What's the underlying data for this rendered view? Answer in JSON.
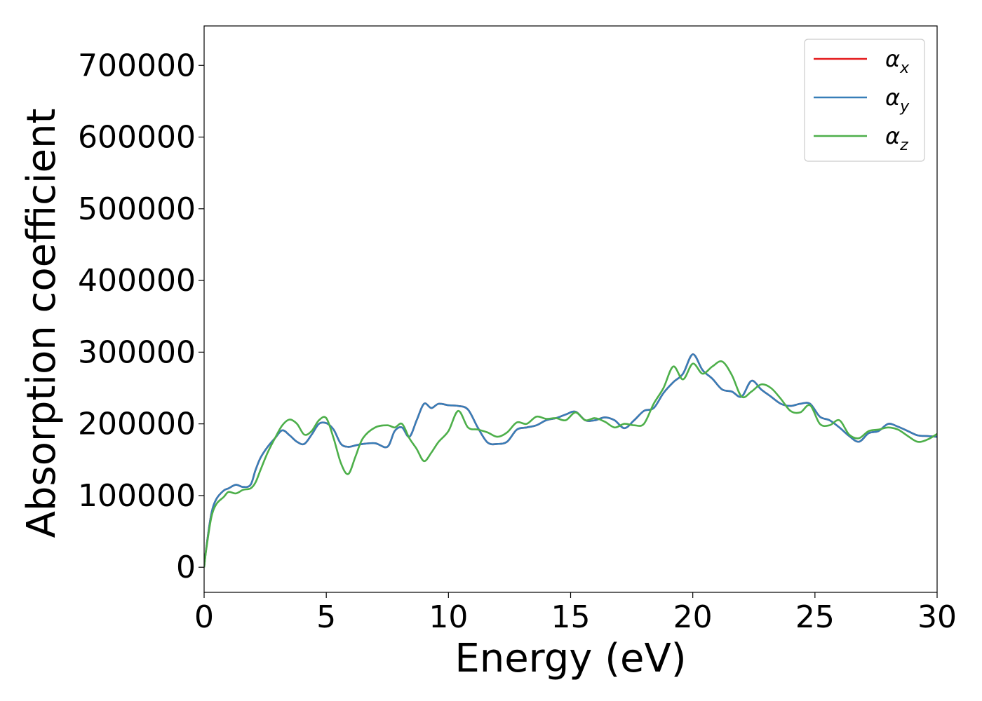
{
  "chart_data": {
    "type": "line",
    "title": "",
    "xlabel": "Energy (eV)",
    "ylabel": "Absorption coefficient",
    "xlim": [
      0,
      30
    ],
    "ylim": [
      -35000,
      755000
    ],
    "xticks": [
      0,
      5,
      10,
      15,
      20,
      25,
      30
    ],
    "xtick_labels": [
      "0",
      "5",
      "10",
      "15",
      "20",
      "25",
      "30"
    ],
    "yticks": [
      0,
      100000,
      200000,
      300000,
      400000,
      500000,
      600000,
      700000
    ],
    "ytick_labels": [
      "0",
      "100000",
      "200000",
      "300000",
      "400000",
      "500000",
      "600000",
      "700000"
    ],
    "grid": false,
    "legend_position": "upper-right",
    "colors": {
      "x": "#e41a1c",
      "y": "#377eb8",
      "z": "#4daf4a"
    },
    "series": [
      {
        "name": "α",
        "subscript": "x",
        "color": "#e41a1c",
        "x": [
          0,
          0.1,
          0.3,
          0.5,
          0.8,
          1.0,
          1.3,
          1.6,
          1.9,
          2.1,
          2.3,
          2.6,
          2.9,
          3.2,
          3.5,
          3.8,
          4.1,
          4.4,
          4.7,
          5.0,
          5.3,
          5.6,
          5.9,
          6.2,
          6.5,
          7.0,
          7.5,
          7.8,
          8.1,
          8.4,
          8.7,
          9.0,
          9.3,
          9.6,
          10.0,
          10.4,
          10.8,
          11.2,
          11.6,
          12.0,
          12.4,
          12.8,
          13.2,
          13.6,
          14.0,
          14.4,
          14.8,
          15.2,
          15.6,
          16.0,
          16.4,
          16.8,
          17.2,
          17.6,
          18.0,
          18.4,
          18.8,
          19.2,
          19.6,
          20.0,
          20.4,
          20.8,
          21.2,
          21.6,
          22.0,
          22.4,
          22.8,
          23.2,
          23.6,
          24.0,
          24.4,
          24.8,
          25.2,
          25.6,
          26.0,
          26.4,
          26.8,
          27.2,
          27.6,
          28.0,
          28.4,
          28.8,
          29.2,
          29.6,
          30.0
        ],
        "values": [
          0,
          30000,
          75000,
          95000,
          107000,
          110000,
          115000,
          112000,
          115000,
          135000,
          152000,
          168000,
          180000,
          191000,
          184000,
          175000,
          172000,
          185000,
          200000,
          201000,
          192000,
          172000,
          168000,
          170000,
          172000,
          173000,
          168000,
          190000,
          195000,
          182000,
          205000,
          228000,
          222000,
          228000,
          226000,
          225000,
          220000,
          195000,
          174000,
          172000,
          175000,
          192000,
          195000,
          198000,
          205000,
          208000,
          213000,
          217000,
          205000,
          205000,
          209000,
          205000,
          194000,
          205000,
          218000,
          222000,
          243000,
          258000,
          270000,
          297000,
          275000,
          263000,
          248000,
          245000,
          238000,
          260000,
          248000,
          238000,
          228000,
          225000,
          228000,
          228000,
          210000,
          205000,
          195000,
          183000,
          175000,
          187000,
          190000,
          200000,
          196000,
          190000,
          184000,
          183000,
          182000
        ]
      },
      {
        "name": "α",
        "subscript": "y",
        "color": "#377eb8",
        "x": [
          0,
          0.1,
          0.3,
          0.5,
          0.8,
          1.0,
          1.3,
          1.6,
          1.9,
          2.1,
          2.3,
          2.6,
          2.9,
          3.2,
          3.5,
          3.8,
          4.1,
          4.4,
          4.7,
          5.0,
          5.3,
          5.6,
          5.9,
          6.2,
          6.5,
          7.0,
          7.5,
          7.8,
          8.1,
          8.4,
          8.7,
          9.0,
          9.3,
          9.6,
          10.0,
          10.4,
          10.8,
          11.2,
          11.6,
          12.0,
          12.4,
          12.8,
          13.2,
          13.6,
          14.0,
          14.4,
          14.8,
          15.2,
          15.6,
          16.0,
          16.4,
          16.8,
          17.2,
          17.6,
          18.0,
          18.4,
          18.8,
          19.2,
          19.6,
          20.0,
          20.4,
          20.8,
          21.2,
          21.6,
          22.0,
          22.4,
          22.8,
          23.2,
          23.6,
          24.0,
          24.4,
          24.8,
          25.2,
          25.6,
          26.0,
          26.4,
          26.8,
          27.2,
          27.6,
          28.0,
          28.4,
          28.8,
          29.2,
          29.6,
          30.0
        ],
        "values": [
          0,
          30000,
          75000,
          95000,
          107000,
          110000,
          115000,
          112000,
          115000,
          135000,
          152000,
          168000,
          180000,
          191000,
          184000,
          175000,
          172000,
          185000,
          200000,
          201000,
          192000,
          172000,
          168000,
          170000,
          172000,
          173000,
          168000,
          190000,
          195000,
          182000,
          205000,
          228000,
          222000,
          228000,
          226000,
          225000,
          220000,
          195000,
          174000,
          172000,
          175000,
          192000,
          195000,
          198000,
          205000,
          208000,
          213000,
          217000,
          205000,
          205000,
          209000,
          205000,
          194000,
          205000,
          218000,
          222000,
          243000,
          258000,
          270000,
          297000,
          275000,
          263000,
          248000,
          245000,
          238000,
          260000,
          248000,
          238000,
          228000,
          225000,
          228000,
          228000,
          210000,
          205000,
          195000,
          183000,
          175000,
          187000,
          190000,
          200000,
          196000,
          190000,
          184000,
          183000,
          182000
        ]
      },
      {
        "name": "α",
        "subscript": "z",
        "color": "#4daf4a",
        "x": [
          0,
          0.1,
          0.3,
          0.5,
          0.8,
          1.0,
          1.3,
          1.6,
          1.9,
          2.1,
          2.3,
          2.6,
          2.9,
          3.2,
          3.5,
          3.8,
          4.1,
          4.4,
          4.7,
          5.0,
          5.3,
          5.6,
          5.9,
          6.2,
          6.5,
          7.0,
          7.5,
          7.8,
          8.1,
          8.4,
          8.7,
          9.0,
          9.3,
          9.6,
          10.0,
          10.4,
          10.8,
          11.2,
          11.6,
          12.0,
          12.4,
          12.8,
          13.2,
          13.6,
          14.0,
          14.4,
          14.8,
          15.2,
          15.6,
          16.0,
          16.4,
          16.8,
          17.2,
          17.6,
          18.0,
          18.4,
          18.8,
          19.2,
          19.6,
          20.0,
          20.4,
          20.8,
          21.2,
          21.6,
          22.0,
          22.4,
          22.8,
          23.2,
          23.6,
          24.0,
          24.4,
          24.8,
          25.2,
          25.6,
          26.0,
          26.4,
          26.8,
          27.2,
          27.6,
          28.0,
          28.4,
          28.8,
          29.2,
          29.6,
          30.0
        ],
        "values": [
          0,
          28000,
          70000,
          88000,
          98000,
          105000,
          103000,
          108000,
          110000,
          118000,
          135000,
          160000,
          180000,
          198000,
          206000,
          200000,
          185000,
          190000,
          205000,
          208000,
          180000,
          145000,
          130000,
          155000,
          180000,
          195000,
          198000,
          195000,
          200000,
          180000,
          165000,
          148000,
          160000,
          175000,
          190000,
          218000,
          195000,
          192000,
          188000,
          182000,
          188000,
          202000,
          200000,
          210000,
          207000,
          208000,
          205000,
          216000,
          205000,
          208000,
          203000,
          195000,
          200000,
          198000,
          200000,
          228000,
          250000,
          280000,
          262000,
          284000,
          270000,
          280000,
          287000,
          268000,
          238000,
          245000,
          255000,
          250000,
          235000,
          218000,
          216000,
          226000,
          200000,
          198000,
          205000,
          185000,
          180000,
          190000,
          192000,
          195000,
          192000,
          183000,
          175000,
          178000,
          186000
        ]
      }
    ]
  }
}
